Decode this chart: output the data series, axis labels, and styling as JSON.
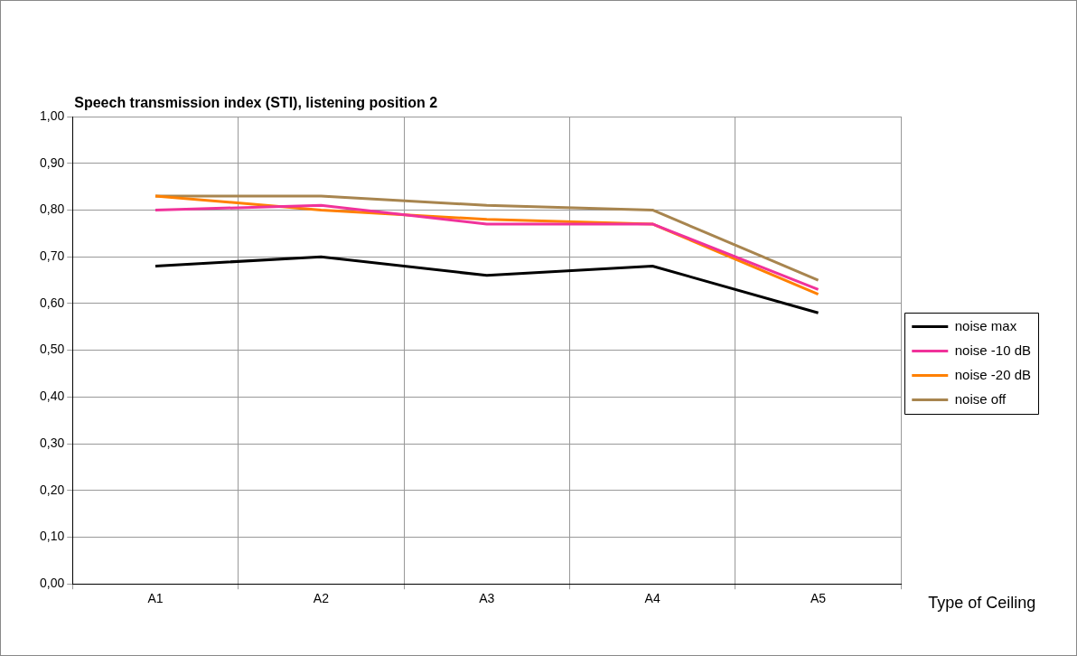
{
  "chart_data": {
    "type": "line",
    "title": "Speech transmission index (STI), listening position 2",
    "xlabel": "Type of Ceiling",
    "categories": [
      "A1",
      "A2",
      "A3",
      "A4",
      "A5"
    ],
    "series": [
      {
        "name": "noise max",
        "color": "#000000",
        "values": [
          0.68,
          0.7,
          0.66,
          0.68,
          0.58
        ]
      },
      {
        "name": "noise -10 dB",
        "color": "#f0329a",
        "values": [
          0.8,
          0.81,
          0.77,
          0.77,
          0.63
        ]
      },
      {
        "name": "noise -20 dB",
        "color": "#ff8000",
        "values": [
          0.83,
          0.8,
          0.78,
          0.77,
          0.62
        ]
      },
      {
        "name": "noise off",
        "color": "#a8854f",
        "values": [
          0.83,
          0.83,
          0.81,
          0.8,
          0.65
        ]
      }
    ],
    "ylim": [
      0,
      1
    ],
    "yticks": [
      {
        "value": 0,
        "label": "0,00"
      },
      {
        "value": 0.1,
        "label": "0,10"
      },
      {
        "value": 0.2,
        "label": "0,20"
      },
      {
        "value": 0.3,
        "label": "0,30"
      },
      {
        "value": 0.4,
        "label": "0,40"
      },
      {
        "value": 0.5,
        "label": "0,50"
      },
      {
        "value": 0.6,
        "label": "0,60"
      },
      {
        "value": 0.7,
        "label": "0,70"
      },
      {
        "value": 0.8,
        "label": "0,80"
      },
      {
        "value": 0.9,
        "label": "0,90"
      },
      {
        "value": 1,
        "label": "1,00"
      }
    ],
    "grid": true,
    "legend": "right",
    "marker": "none",
    "line_style": "solid"
  }
}
